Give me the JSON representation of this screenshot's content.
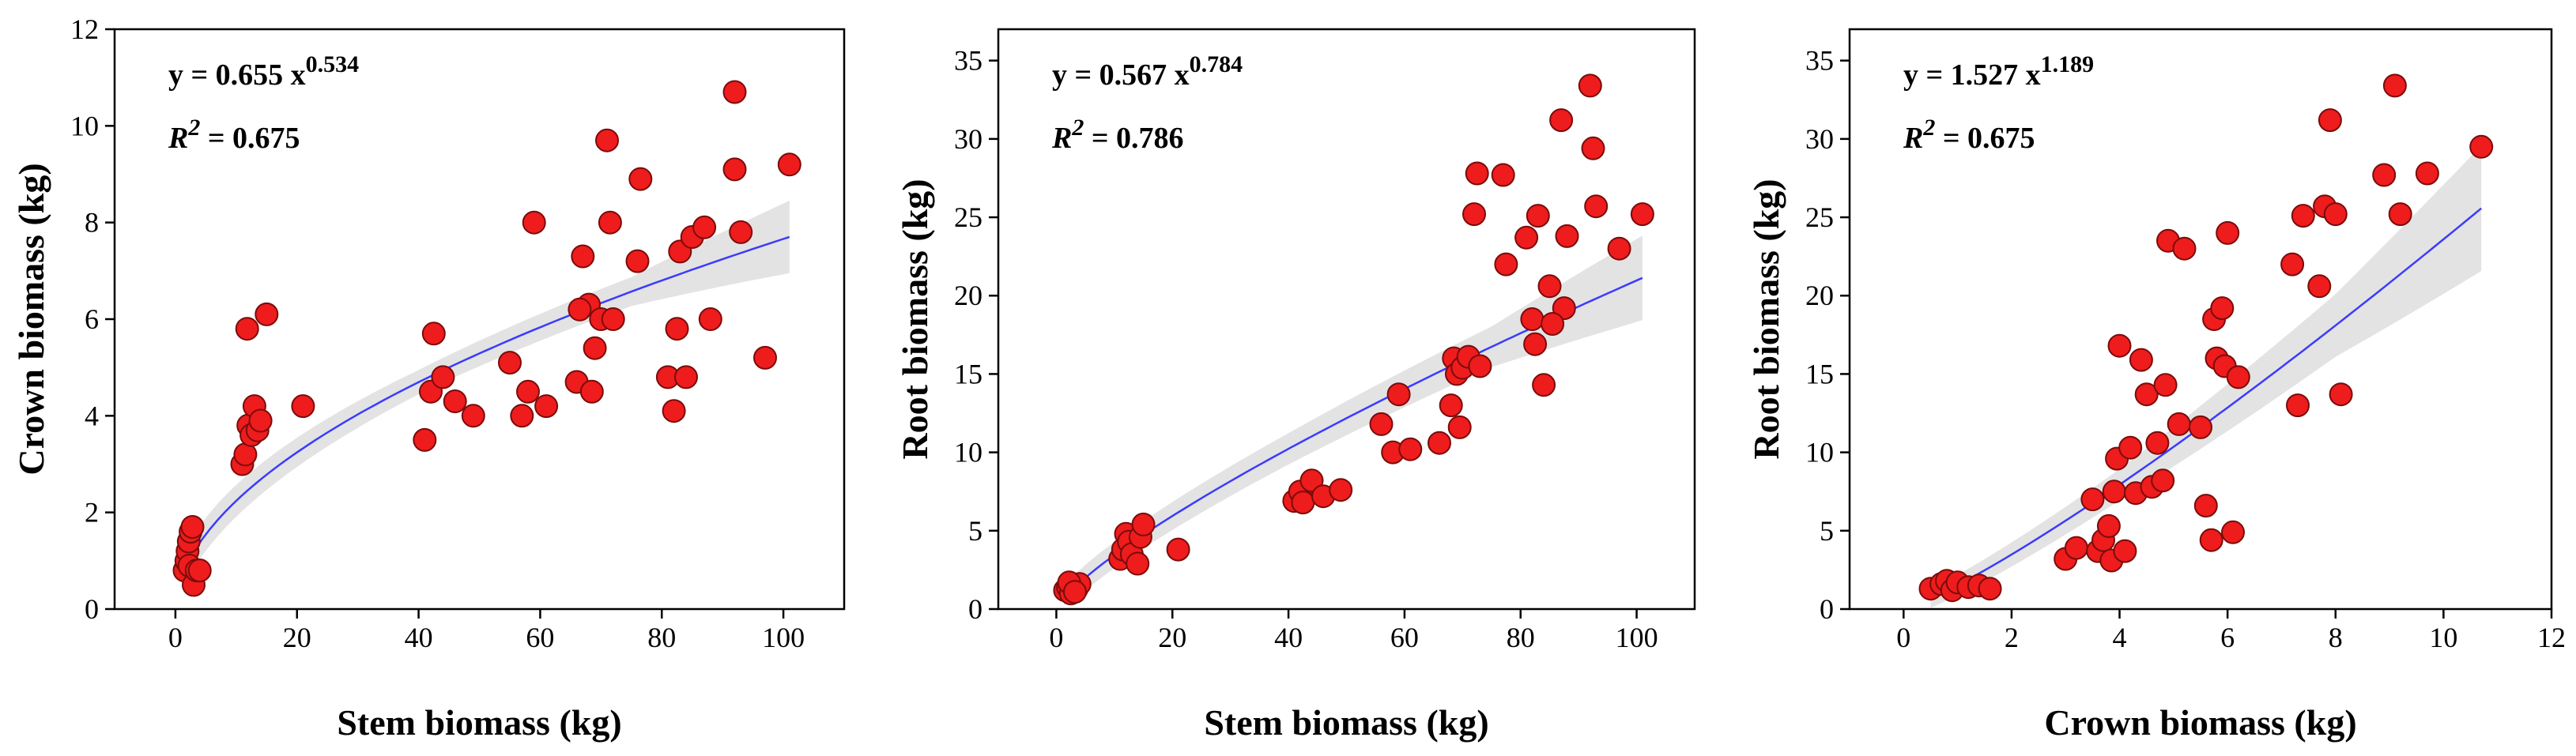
{
  "chart_data": [
    {
      "type": "scatter",
      "xlabel": "Stem biomass (kg)",
      "ylabel": "Crown biomass (kg)",
      "xlim": [
        -10,
        110
      ],
      "ylim": [
        0,
        12
      ],
      "xticks": [
        0,
        20,
        40,
        60,
        80,
        100
      ],
      "yticks": [
        0,
        2,
        4,
        6,
        8,
        10,
        12
      ],
      "equation": {
        "prefix": "y = 0.655 x",
        "exponent": "0.534",
        "r2_label": "R",
        "r2_sup": "2",
        "r2_value": " = 0.675"
      },
      "fit": {
        "a": 0.655,
        "b": 0.534,
        "x_range": [
          2,
          101
        ]
      },
      "band_halfwidth": [
        [
          2,
          0.35
        ],
        [
          40,
          0.25
        ],
        [
          75,
          0.3
        ],
        [
          101,
          0.75
        ]
      ],
      "points": [
        [
          1.5,
          0.8
        ],
        [
          1.8,
          1.0
        ],
        [
          2.0,
          1.2
        ],
        [
          2.2,
          1.4
        ],
        [
          2.5,
          1.6
        ],
        [
          2.3,
          0.9
        ],
        [
          3.0,
          0.5
        ],
        [
          3.5,
          0.8
        ],
        [
          4.0,
          0.8
        ],
        [
          2.8,
          1.7
        ],
        [
          11.0,
          3.0
        ],
        [
          11.5,
          3.2
        ],
        [
          12.0,
          3.8
        ],
        [
          12.5,
          3.6
        ],
        [
          13.0,
          4.2
        ],
        [
          13.5,
          3.7
        ],
        [
          14.0,
          3.9
        ],
        [
          11.8,
          5.8
        ],
        [
          15.0,
          6.1
        ],
        [
          21.0,
          4.2
        ],
        [
          41.0,
          3.5
        ],
        [
          42.0,
          4.5
        ],
        [
          42.5,
          5.7
        ],
        [
          44.0,
          4.8
        ],
        [
          46.0,
          4.3
        ],
        [
          49.0,
          4.0
        ],
        [
          55.0,
          5.1
        ],
        [
          57.0,
          4.0
        ],
        [
          58.0,
          4.5
        ],
        [
          59.0,
          8.0
        ],
        [
          61.0,
          4.2
        ],
        [
          66.0,
          4.7
        ],
        [
          67.0,
          7.3
        ],
        [
          68.0,
          6.3
        ],
        [
          69.0,
          5.4
        ],
        [
          70.0,
          6.0
        ],
        [
          71.0,
          9.7
        ],
        [
          71.5,
          8.0
        ],
        [
          72.0,
          6.0
        ],
        [
          76.0,
          7.2
        ],
        [
          76.5,
          8.9
        ],
        [
          81.0,
          4.8
        ],
        [
          82.0,
          4.1
        ],
        [
          82.5,
          5.8
        ],
        [
          83.0,
          7.4
        ],
        [
          84.0,
          4.8
        ],
        [
          85.0,
          7.7
        ],
        [
          87.0,
          7.9
        ],
        [
          88.0,
          6.0
        ],
        [
          92.0,
          10.7
        ],
        [
          92.0,
          9.1
        ],
        [
          93.0,
          7.8
        ],
        [
          97.0,
          5.2
        ],
        [
          101.0,
          9.2
        ],
        [
          68.5,
          4.5
        ],
        [
          66.5,
          6.2
        ]
      ]
    },
    {
      "type": "scatter",
      "xlabel": "Stem biomass (kg)",
      "ylabel": "Root biomass (kg)",
      "xlim": [
        -10,
        110
      ],
      "ylim": [
        0,
        37
      ],
      "xticks": [
        0,
        20,
        40,
        60,
        80,
        100
      ],
      "yticks": [
        0,
        5,
        10,
        15,
        20,
        25,
        30,
        35
      ],
      "equation": {
        "prefix": "y = 0.567 x",
        "exponent": "0.784",
        "r2_label": "R",
        "r2_sup": "2",
        "r2_value": " = 0.786"
      },
      "fit": {
        "a": 0.567,
        "b": 0.784,
        "x_range": [
          2,
          101
        ]
      },
      "band_halfwidth": [
        [
          2,
          0.8
        ],
        [
          40,
          1.0
        ],
        [
          75,
          1.3
        ],
        [
          101,
          2.7
        ]
      ],
      "points": [
        [
          1.5,
          1.2
        ],
        [
          2.0,
          1.4
        ],
        [
          2.5,
          1.0
        ],
        [
          3.0,
          1.5
        ],
        [
          3.5,
          1.3
        ],
        [
          4.0,
          1.6
        ],
        [
          2.2,
          1.7
        ],
        [
          3.2,
          1.1
        ],
        [
          11.0,
          3.2
        ],
        [
          11.5,
          3.8
        ],
        [
          12.0,
          4.8
        ],
        [
          12.5,
          4.3
        ],
        [
          13.0,
          3.5
        ],
        [
          14.0,
          2.9
        ],
        [
          14.5,
          4.6
        ],
        [
          15.0,
          5.4
        ],
        [
          21.0,
          3.8
        ],
        [
          41.0,
          6.9
        ],
        [
          42.0,
          7.5
        ],
        [
          42.5,
          6.8
        ],
        [
          44.0,
          8.2
        ],
        [
          46.0,
          7.2
        ],
        [
          49.0,
          7.6
        ],
        [
          56.0,
          11.8
        ],
        [
          58.0,
          10.0
        ],
        [
          59.0,
          13.7
        ],
        [
          61.0,
          10.2
        ],
        [
          66.0,
          10.6
        ],
        [
          68.0,
          13.0
        ],
        [
          68.5,
          16.0
        ],
        [
          69.0,
          15.0
        ],
        [
          69.5,
          11.6
        ],
        [
          70.0,
          15.4
        ],
        [
          71.0,
          16.1
        ],
        [
          72.0,
          25.2
        ],
        [
          72.5,
          27.8
        ],
        [
          73.0,
          15.5
        ],
        [
          77.0,
          27.7
        ],
        [
          77.5,
          22.0
        ],
        [
          81.0,
          23.7
        ],
        [
          82.0,
          18.5
        ],
        [
          82.5,
          16.9
        ],
        [
          83.0,
          25.1
        ],
        [
          84.0,
          14.3
        ],
        [
          85.0,
          20.6
        ],
        [
          87.0,
          31.2
        ],
        [
          87.5,
          19.2
        ],
        [
          88.0,
          23.8
        ],
        [
          92.0,
          33.4
        ],
        [
          92.5,
          29.4
        ],
        [
          93.0,
          25.7
        ],
        [
          97.0,
          23.0
        ],
        [
          101.0,
          25.2
        ],
        [
          85.5,
          18.2
        ]
      ]
    },
    {
      "type": "scatter",
      "xlabel": "Crown biomass (kg)",
      "ylabel": "Root biomass (kg)",
      "xlim": [
        -1,
        12
      ],
      "ylim": [
        0,
        37
      ],
      "xticks": [
        0,
        2,
        4,
        6,
        8,
        10,
        12
      ],
      "yticks": [
        0,
        5,
        10,
        15,
        20,
        25,
        30,
        35
      ],
      "equation": {
        "prefix": "y = 1.527 x",
        "exponent": "1.189",
        "r2_label": "R",
        "r2_sup": "2",
        "r2_value": " = 0.675"
      },
      "fit": {
        "a": 1.527,
        "b": 1.189,
        "x_range": [
          0.5,
          10.7
        ]
      },
      "band_halfwidth": [
        [
          0.5,
          0.6
        ],
        [
          4,
          1.0
        ],
        [
          8,
          2.0
        ],
        [
          10.7,
          4.0
        ]
      ],
      "points": [
        [
          0.5,
          1.3
        ],
        [
          0.7,
          1.6
        ],
        [
          0.8,
          1.8
        ],
        [
          0.9,
          1.2
        ],
        [
          1.0,
          1.7
        ],
        [
          1.2,
          1.4
        ],
        [
          1.4,
          1.5
        ],
        [
          1.6,
          1.3
        ],
        [
          3.0,
          3.2
        ],
        [
          3.2,
          3.9
        ],
        [
          3.5,
          7.0
        ],
        [
          3.6,
          3.7
        ],
        [
          3.7,
          4.4
        ],
        [
          3.8,
          5.3
        ],
        [
          3.85,
          3.1
        ],
        [
          3.9,
          7.5
        ],
        [
          3.95,
          9.6
        ],
        [
          4.0,
          16.8
        ],
        [
          4.1,
          3.7
        ],
        [
          4.2,
          10.3
        ],
        [
          4.3,
          7.4
        ],
        [
          4.4,
          15.9
        ],
        [
          4.5,
          13.7
        ],
        [
          4.6,
          7.8
        ],
        [
          4.7,
          10.6
        ],
        [
          4.8,
          8.2
        ],
        [
          4.85,
          14.3
        ],
        [
          4.9,
          23.5
        ],
        [
          5.1,
          11.8
        ],
        [
          5.2,
          23.0
        ],
        [
          5.5,
          11.6
        ],
        [
          5.6,
          6.6
        ],
        [
          5.7,
          4.4
        ],
        [
          5.75,
          18.5
        ],
        [
          5.8,
          16.0
        ],
        [
          5.9,
          19.2
        ],
        [
          5.95,
          15.5
        ],
        [
          6.0,
          24.0
        ],
        [
          6.1,
          4.9
        ],
        [
          6.2,
          14.8
        ],
        [
          7.2,
          22.0
        ],
        [
          7.3,
          13.0
        ],
        [
          7.4,
          25.1
        ],
        [
          7.7,
          20.6
        ],
        [
          7.8,
          25.7
        ],
        [
          7.9,
          31.2
        ],
        [
          8.0,
          25.2
        ],
        [
          8.1,
          13.7
        ],
        [
          8.9,
          27.7
        ],
        [
          9.1,
          33.4
        ],
        [
          9.2,
          25.2
        ],
        [
          9.7,
          27.8
        ],
        [
          10.7,
          29.5
        ]
      ]
    }
  ],
  "colors": {
    "marker_fill": "#ee1c1c",
    "marker_stroke": "#7a0b0b",
    "fit_line": "#3b3bff",
    "band": "#e3e3e3",
    "axis": "#000000"
  }
}
